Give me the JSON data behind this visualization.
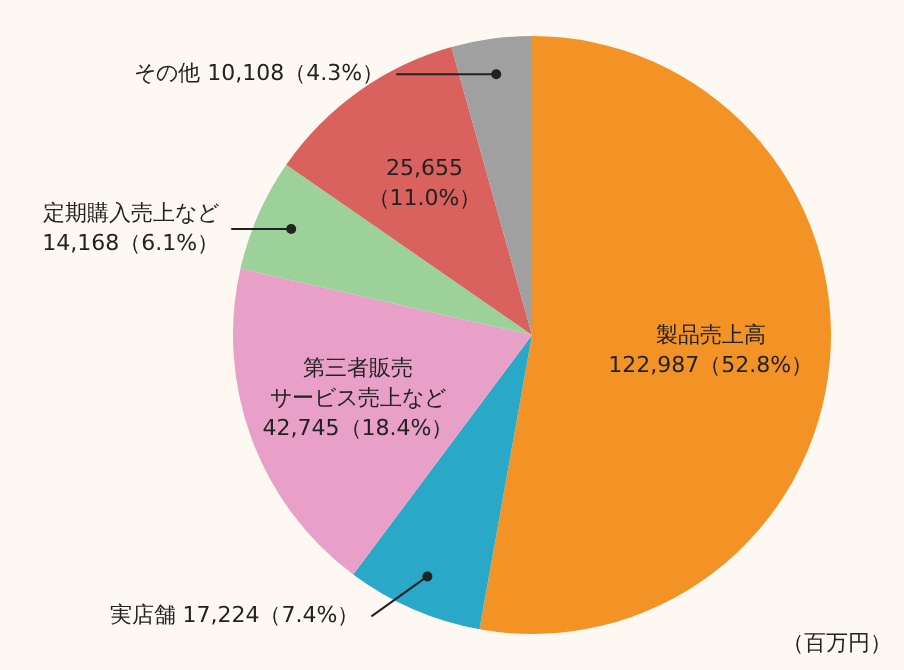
{
  "chart_data": {
    "type": "pie",
    "categories": [
      "製品売上高",
      "実店舗",
      "第三者販売サービス売上など",
      "定期購入売上など",
      null,
      "その他"
    ],
    "values": [
      122987,
      17224,
      42745,
      14168,
      25655,
      10108
    ],
    "value_labels": [
      "122,987（52.8%）",
      "17,224（7.4%）",
      "42,745（18.4%）",
      "14,168（6.1%）",
      "25,655\n（11.0%）",
      "10,108（4.3%）"
    ],
    "colors": [
      "#f39325",
      "#2aa8c8",
      "#e8a0c8",
      "#9dd19a",
      "#d9625e",
      "#a0a0a0"
    ],
    "legend": false,
    "annotations": [
      "（百万円）"
    ]
  }
}
